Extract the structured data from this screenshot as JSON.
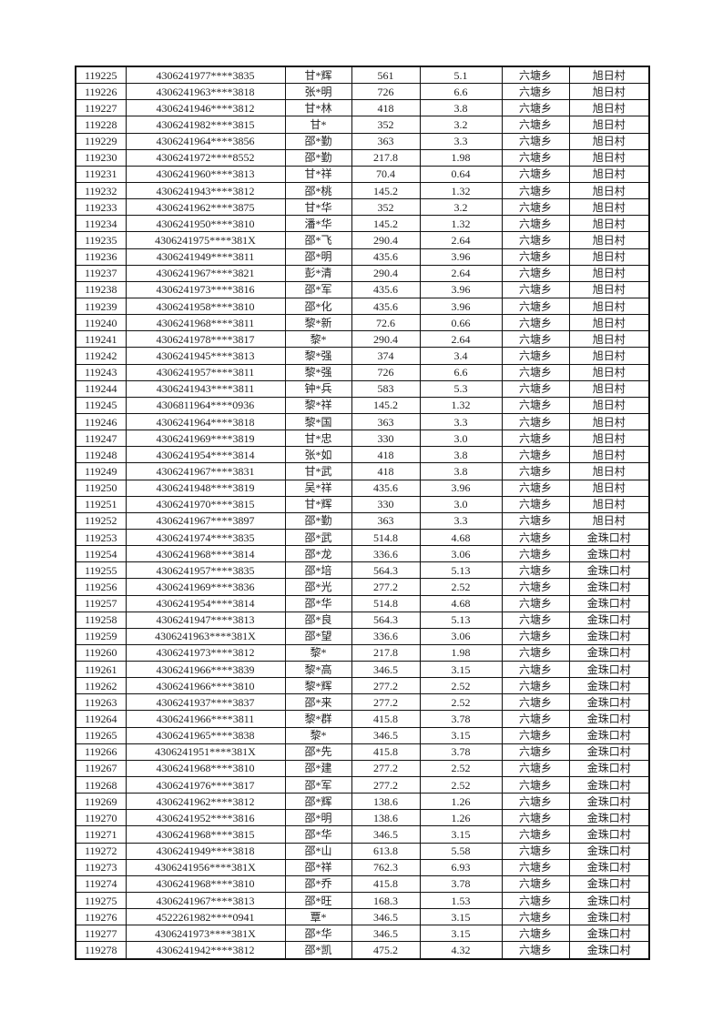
{
  "table": {
    "rows": [
      [
        "119225",
        "4306241977****3835",
        "甘*辉",
        "561",
        "5.1",
        "六塘乡",
        "旭日村"
      ],
      [
        "119226",
        "4306241963****3818",
        "张*明",
        "726",
        "6.6",
        "六塘乡",
        "旭日村"
      ],
      [
        "119227",
        "4306241946****3812",
        "甘*林",
        "418",
        "3.8",
        "六塘乡",
        "旭日村"
      ],
      [
        "119228",
        "4306241982****3815",
        "甘*",
        "352",
        "3.2",
        "六塘乡",
        "旭日村"
      ],
      [
        "119229",
        "4306241964****3856",
        "邵*勤",
        "363",
        "3.3",
        "六塘乡",
        "旭日村"
      ],
      [
        "119230",
        "4306241972****8552",
        "邵*勤",
        "217.8",
        "1.98",
        "六塘乡",
        "旭日村"
      ],
      [
        "119231",
        "4306241960****3813",
        "甘*祥",
        "70.4",
        "0.64",
        "六塘乡",
        "旭日村"
      ],
      [
        "119232",
        "4306241943****3812",
        "邵*桃",
        "145.2",
        "1.32",
        "六塘乡",
        "旭日村"
      ],
      [
        "119233",
        "4306241962****3875",
        "甘*华",
        "352",
        "3.2",
        "六塘乡",
        "旭日村"
      ],
      [
        "119234",
        "4306241950****3810",
        "潘*华",
        "145.2",
        "1.32",
        "六塘乡",
        "旭日村"
      ],
      [
        "119235",
        "4306241975****381X",
        "邵*飞",
        "290.4",
        "2.64",
        "六塘乡",
        "旭日村"
      ],
      [
        "119236",
        "4306241949****3811",
        "邵*明",
        "435.6",
        "3.96",
        "六塘乡",
        "旭日村"
      ],
      [
        "119237",
        "4306241967****3821",
        "彭*清",
        "290.4",
        "2.64",
        "六塘乡",
        "旭日村"
      ],
      [
        "119238",
        "4306241973****3816",
        "邵*军",
        "435.6",
        "3.96",
        "六塘乡",
        "旭日村"
      ],
      [
        "119239",
        "4306241958****3810",
        "邵*化",
        "435.6",
        "3.96",
        "六塘乡",
        "旭日村"
      ],
      [
        "119240",
        "4306241968****3811",
        "黎*新",
        "72.6",
        "0.66",
        "六塘乡",
        "旭日村"
      ],
      [
        "119241",
        "4306241978****3817",
        "黎*",
        "290.4",
        "2.64",
        "六塘乡",
        "旭日村"
      ],
      [
        "119242",
        "4306241945****3813",
        "黎*强",
        "374",
        "3.4",
        "六塘乡",
        "旭日村"
      ],
      [
        "119243",
        "4306241957****3811",
        "黎*强",
        "726",
        "6.6",
        "六塘乡",
        "旭日村"
      ],
      [
        "119244",
        "4306241943****3811",
        "钟*兵",
        "583",
        "5.3",
        "六塘乡",
        "旭日村"
      ],
      [
        "119245",
        "4306811964****0936",
        "黎*祥",
        "145.2",
        "1.32",
        "六塘乡",
        "旭日村"
      ],
      [
        "119246",
        "4306241964****3818",
        "黎*国",
        "363",
        "3.3",
        "六塘乡",
        "旭日村"
      ],
      [
        "119247",
        "4306241969****3819",
        "甘*忠",
        "330",
        "3.0",
        "六塘乡",
        "旭日村"
      ],
      [
        "119248",
        "4306241954****3814",
        "张*如",
        "418",
        "3.8",
        "六塘乡",
        "旭日村"
      ],
      [
        "119249",
        "4306241967****3831",
        "甘*武",
        "418",
        "3.8",
        "六塘乡",
        "旭日村"
      ],
      [
        "119250",
        "4306241948****3819",
        "吴*祥",
        "435.6",
        "3.96",
        "六塘乡",
        "旭日村"
      ],
      [
        "119251",
        "4306241970****3815",
        "甘*辉",
        "330",
        "3.0",
        "六塘乡",
        "旭日村"
      ],
      [
        "119252",
        "4306241967****3897",
        "邵*勤",
        "363",
        "3.3",
        "六塘乡",
        "旭日村"
      ],
      [
        "119253",
        "4306241974****3835",
        "邵*武",
        "514.8",
        "4.68",
        "六塘乡",
        "金珠口村"
      ],
      [
        "119254",
        "4306241968****3814",
        "邵*龙",
        "336.6",
        "3.06",
        "六塘乡",
        "金珠口村"
      ],
      [
        "119255",
        "4306241957****3835",
        "邵*培",
        "564.3",
        "5.13",
        "六塘乡",
        "金珠口村"
      ],
      [
        "119256",
        "4306241969****3836",
        "邵*光",
        "277.2",
        "2.52",
        "六塘乡",
        "金珠口村"
      ],
      [
        "119257",
        "4306241954****3814",
        "邵*华",
        "514.8",
        "4.68",
        "六塘乡",
        "金珠口村"
      ],
      [
        "119258",
        "4306241947****3813",
        "邵*良",
        "564.3",
        "5.13",
        "六塘乡",
        "金珠口村"
      ],
      [
        "119259",
        "4306241963****381X",
        "邵*望",
        "336.6",
        "3.06",
        "六塘乡",
        "金珠口村"
      ],
      [
        "119260",
        "4306241973****3812",
        "黎*",
        "217.8",
        "1.98",
        "六塘乡",
        "金珠口村"
      ],
      [
        "119261",
        "4306241966****3839",
        "黎*高",
        "346.5",
        "3.15",
        "六塘乡",
        "金珠口村"
      ],
      [
        "119262",
        "4306241966****3810",
        "黎*辉",
        "277.2",
        "2.52",
        "六塘乡",
        "金珠口村"
      ],
      [
        "119263",
        "4306241937****3837",
        "邵*来",
        "277.2",
        "2.52",
        "六塘乡",
        "金珠口村"
      ],
      [
        "119264",
        "4306241966****3811",
        "黎*群",
        "415.8",
        "3.78",
        "六塘乡",
        "金珠口村"
      ],
      [
        "119265",
        "4306241965****3838",
        "黎*",
        "346.5",
        "3.15",
        "六塘乡",
        "金珠口村"
      ],
      [
        "119266",
        "4306241951****381X",
        "邵*先",
        "415.8",
        "3.78",
        "六塘乡",
        "金珠口村"
      ],
      [
        "119267",
        "4306241968****3810",
        "邵*建",
        "277.2",
        "2.52",
        "六塘乡",
        "金珠口村"
      ],
      [
        "119268",
        "4306241976****3817",
        "邵*军",
        "277.2",
        "2.52",
        "六塘乡",
        "金珠口村"
      ],
      [
        "119269",
        "4306241962****3812",
        "邵*辉",
        "138.6",
        "1.26",
        "六塘乡",
        "金珠口村"
      ],
      [
        "119270",
        "4306241952****3816",
        "邵*明",
        "138.6",
        "1.26",
        "六塘乡",
        "金珠口村"
      ],
      [
        "119271",
        "4306241968****3815",
        "邵*华",
        "346.5",
        "3.15",
        "六塘乡",
        "金珠口村"
      ],
      [
        "119272",
        "4306241949****3818",
        "邵*山",
        "613.8",
        "5.58",
        "六塘乡",
        "金珠口村"
      ],
      [
        "119273",
        "4306241956****381X",
        "邵*祥",
        "762.3",
        "6.93",
        "六塘乡",
        "金珠口村"
      ],
      [
        "119274",
        "4306241968****3810",
        "邵*乔",
        "415.8",
        "3.78",
        "六塘乡",
        "金珠口村"
      ],
      [
        "119275",
        "4306241967****3813",
        "邵*旺",
        "168.3",
        "1.53",
        "六塘乡",
        "金珠口村"
      ],
      [
        "119276",
        "4522261982****0941",
        "覃*",
        "346.5",
        "3.15",
        "六塘乡",
        "金珠口村"
      ],
      [
        "119277",
        "4306241973****381X",
        "邵*华",
        "346.5",
        "3.15",
        "六塘乡",
        "金珠口村"
      ],
      [
        "119278",
        "4306241942****3812",
        "邵*凯",
        "475.2",
        "4.32",
        "六塘乡",
        "金珠口村"
      ]
    ]
  }
}
